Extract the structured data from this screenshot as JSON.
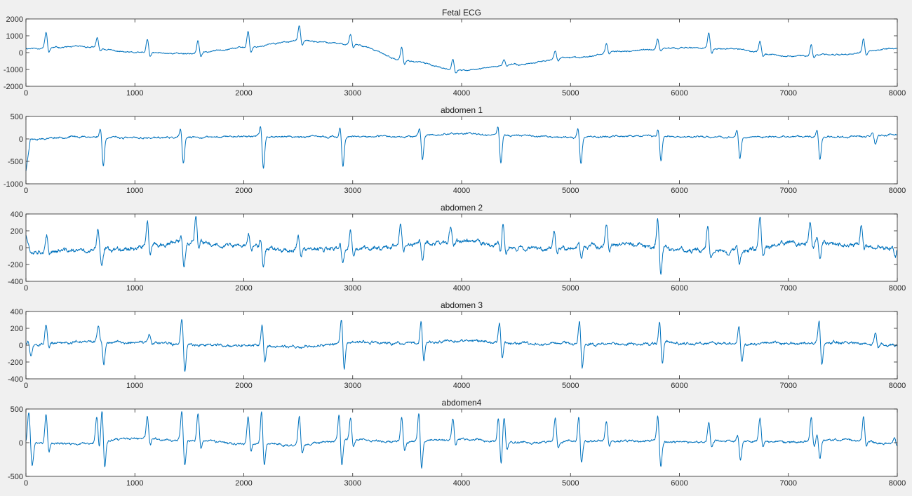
{
  "chart_data": [
    {
      "type": "line",
      "title": "Fetal ECG",
      "xlabel": "",
      "ylabel": "",
      "xlim": [
        0,
        8000
      ],
      "ylim": [
        -2000,
        2000
      ],
      "xticks": [
        "0",
        "1000",
        "2000",
        "3000",
        "4000",
        "5000",
        "6000",
        "7000",
        "8000"
      ],
      "yticks": [
        "2000",
        "1000",
        "0",
        "-1000",
        "-2000"
      ],
      "color": "#0072bd",
      "series": [
        {
          "baseline": {
            "x": [
              0,
              500,
              1000,
              1500,
              2000,
              2500,
              3000,
              3500,
              4000,
              4500,
              5000,
              5500,
              6000,
              6500,
              7000,
              7500,
              8000
            ],
            "y": [
              250,
              350,
              0,
              -50,
              300,
              700,
              500,
              -500,
              -1050,
              -700,
              -300,
              100,
              300,
              200,
              -200,
              -100,
              250
            ]
          },
          "peaks": [
            {
              "x": 185,
              "y": 1200
            },
            {
              "x": 655,
              "y": 900
            },
            {
              "x": 1115,
              "y": 800
            },
            {
              "x": 1580,
              "y": 700
            },
            {
              "x": 2040,
              "y": 1300
            },
            {
              "x": 2510,
              "y": 1600
            },
            {
              "x": 2980,
              "y": 1100
            },
            {
              "x": 3450,
              "y": 300
            },
            {
              "x": 3920,
              "y": -400
            },
            {
              "x": 4390,
              "y": -400
            },
            {
              "x": 4860,
              "y": 100
            },
            {
              "x": 5330,
              "y": 500
            },
            {
              "x": 5800,
              "y": 800
            },
            {
              "x": 6270,
              "y": 1200
            },
            {
              "x": 6740,
              "y": 700
            },
            {
              "x": 7210,
              "y": 500
            },
            {
              "x": 7690,
              "y": 800
            }
          ],
          "noise": 45,
          "seed": 11
        }
      ]
    },
    {
      "type": "line",
      "title": "abdomen 1",
      "xlabel": "",
      "ylabel": "",
      "xlim": [
        0,
        8000
      ],
      "ylim": [
        -1000,
        500
      ],
      "xticks": [
        "0",
        "1000",
        "2000",
        "3000",
        "4000",
        "5000",
        "6000",
        "7000",
        "8000"
      ],
      "yticks": [
        "500",
        "0",
        "-500",
        "-1000"
      ],
      "color": "#0072bd",
      "series": [
        {
          "baseline": {
            "x": [
              0,
              500,
              1000,
              1500,
              2000,
              2500,
              3000,
              3500,
              4000,
              4500,
              5000,
              5500,
              6000,
              6500,
              7000,
              7500,
              8000
            ],
            "y": [
              0,
              50,
              20,
              30,
              60,
              50,
              40,
              60,
              120,
              80,
              40,
              60,
              50,
              40,
              50,
              40,
              100
            ]
          },
          "troughs": [
            {
              "x": 710,
              "y": -600
            },
            {
              "x": 1445,
              "y": -580
            },
            {
              "x": 2180,
              "y": -670
            },
            {
              "x": 2910,
              "y": -620
            },
            {
              "x": 3640,
              "y": -470
            },
            {
              "x": 4360,
              "y": -550
            },
            {
              "x": 5095,
              "y": -550
            },
            {
              "x": 5830,
              "y": -500
            },
            {
              "x": 6555,
              "y": -460
            },
            {
              "x": 7290,
              "y": -470
            },
            {
              "x": 7800,
              "y": -130
            }
          ],
          "start": -720,
          "noise": 22,
          "seed": 23
        }
      ]
    },
    {
      "type": "line",
      "title": "abdomen 2",
      "xlabel": "",
      "ylabel": "",
      "xlim": [
        0,
        8000
      ],
      "ylim": [
        -400,
        400
      ],
      "xticks": [
        "0",
        "1000",
        "2000",
        "3000",
        "4000",
        "5000",
        "6000",
        "7000",
        "8000"
      ],
      "yticks": [
        "400",
        "200",
        "0",
        "-200",
        "-400"
      ],
      "color": "#0072bd",
      "series": [
        {
          "baseline": {
            "x": [
              0,
              500,
              1000,
              1500,
              2000,
              2500,
              3000,
              3500,
              4000,
              4500,
              5000,
              5500,
              6000,
              6500,
              7000,
              7500,
              8000
            ],
            "y": [
              -30,
              -40,
              0,
              60,
              20,
              -30,
              -20,
              30,
              80,
              0,
              0,
              40,
              -20,
              -40,
              50,
              40,
              -10
            ]
          },
          "peaks": [
            {
              "x": 190,
              "y": 120
            },
            {
              "x": 660,
              "y": 200
            },
            {
              "x": 1115,
              "y": 330
            },
            {
              "x": 1560,
              "y": 370
            },
            {
              "x": 2045,
              "y": 160
            },
            {
              "x": 2500,
              "y": 150
            },
            {
              "x": 2980,
              "y": 200
            },
            {
              "x": 3440,
              "y": 290
            },
            {
              "x": 3900,
              "y": 230
            },
            {
              "x": 4380,
              "y": 310
            },
            {
              "x": 4850,
              "y": 200
            },
            {
              "x": 5330,
              "y": 300
            },
            {
              "x": 5800,
              "y": 280
            },
            {
              "x": 6260,
              "y": 250
            },
            {
              "x": 6740,
              "y": 370
            },
            {
              "x": 7200,
              "y": 290
            },
            {
              "x": 7670,
              "y": 250
            }
          ],
          "troughs": [
            {
              "x": 700,
              "y": -200
            },
            {
              "x": 1450,
              "y": -220
            },
            {
              "x": 2180,
              "y": -230
            },
            {
              "x": 2910,
              "y": -180
            },
            {
              "x": 3640,
              "y": -130
            },
            {
              "x": 4360,
              "y": -110
            },
            {
              "x": 5100,
              "y": -150
            },
            {
              "x": 5830,
              "y": -220
            },
            {
              "x": 6550,
              "y": -200
            },
            {
              "x": 7290,
              "y": -160
            },
            {
              "x": 7980,
              "y": -130
            }
          ],
          "start": 150,
          "noise": 30,
          "seed": 37
        }
      ]
    },
    {
      "type": "line",
      "title": "abdomen 3",
      "xlabel": "",
      "ylabel": "",
      "xlim": [
        0,
        8000
      ],
      "ylim": [
        -400,
        400
      ],
      "xticks": [
        "0",
        "1000",
        "2000",
        "3000",
        "4000",
        "5000",
        "6000",
        "7000",
        "8000"
      ],
      "yticks": [
        "400",
        "200",
        "0",
        "-200",
        "-400"
      ],
      "color": "#0072bd",
      "series": [
        {
          "baseline": {
            "x": [
              0,
              500,
              1000,
              1500,
              2000,
              2500,
              3000,
              3500,
              4000,
              4500,
              5000,
              5500,
              6000,
              6500,
              7000,
              7500,
              8000
            ],
            "y": [
              0,
              40,
              30,
              10,
              0,
              -20,
              30,
              20,
              50,
              20,
              20,
              10,
              20,
              20,
              20,
              30,
              0
            ]
          },
          "peaks": [
            {
              "x": 185,
              "y": 240
            },
            {
              "x": 665,
              "y": 230
            },
            {
              "x": 1135,
              "y": 120
            },
            {
              "x": 1430,
              "y": 230
            },
            {
              "x": 2170,
              "y": 220
            },
            {
              "x": 2900,
              "y": 230
            },
            {
              "x": 3630,
              "y": 240
            },
            {
              "x": 4350,
              "y": 220
            },
            {
              "x": 5085,
              "y": 220
            },
            {
              "x": 5820,
              "y": 230
            },
            {
              "x": 6550,
              "y": 200
            },
            {
              "x": 7285,
              "y": 240
            },
            {
              "x": 7800,
              "y": 140
            }
          ],
          "troughs": [
            {
              "x": 45,
              "y": -150
            },
            {
              "x": 715,
              "y": -220
            },
            {
              "x": 1460,
              "y": -260
            },
            {
              "x": 2190,
              "y": -150
            },
            {
              "x": 2920,
              "y": -250
            },
            {
              "x": 3650,
              "y": -150
            },
            {
              "x": 4370,
              "y": -130
            },
            {
              "x": 5105,
              "y": -240
            },
            {
              "x": 5840,
              "y": -180
            },
            {
              "x": 6570,
              "y": -150
            },
            {
              "x": 7305,
              "y": -200
            }
          ],
          "noise": 18,
          "seed": 51
        }
      ]
    },
    {
      "type": "line",
      "title": "abdomen4",
      "xlabel": "",
      "ylabel": "",
      "xlim": [
        0,
        8000
      ],
      "ylim": [
        -500,
        500
      ],
      "xticks": [
        "0",
        "1000",
        "2000",
        "3000",
        "4000",
        "5000",
        "6000",
        "7000",
        "8000"
      ],
      "yticks": [
        "500",
        "0",
        "-500"
      ],
      "color": "#0072bd",
      "series": [
        {
          "baseline": {
            "x": [
              0,
              500,
              1000,
              1500,
              2000,
              2500,
              3000,
              3500,
              4000,
              4500,
              5000,
              5500,
              6000,
              6500,
              7000,
              7500,
              8000
            ],
            "y": [
              0,
              -20,
              60,
              30,
              -10,
              -30,
              40,
              10,
              50,
              0,
              20,
              30,
              10,
              30,
              10,
              40,
              -20
            ]
          },
          "peaks": [
            {
              "x": 25,
              "y": 400
            },
            {
              "x": 185,
              "y": 420
            },
            {
              "x": 650,
              "y": 380
            },
            {
              "x": 700,
              "y": 440
            },
            {
              "x": 1115,
              "y": 380
            },
            {
              "x": 1430,
              "y": 400
            },
            {
              "x": 1580,
              "y": 420
            },
            {
              "x": 2040,
              "y": 380
            },
            {
              "x": 2165,
              "y": 430
            },
            {
              "x": 2510,
              "y": 400
            },
            {
              "x": 2880,
              "y": 400
            },
            {
              "x": 2980,
              "y": 360
            },
            {
              "x": 3450,
              "y": 380
            },
            {
              "x": 3610,
              "y": 380
            },
            {
              "x": 3920,
              "y": 350
            },
            {
              "x": 4340,
              "y": 320
            },
            {
              "x": 4390,
              "y": 380
            },
            {
              "x": 4860,
              "y": 380
            },
            {
              "x": 5080,
              "y": 400
            },
            {
              "x": 5330,
              "y": 320
            },
            {
              "x": 5800,
              "y": 320
            },
            {
              "x": 6270,
              "y": 330
            },
            {
              "x": 6740,
              "y": 360
            },
            {
              "x": 7210,
              "y": 360
            },
            {
              "x": 7690,
              "y": 380
            },
            {
              "x": 7975,
              "y": 80
            }
          ],
          "troughs": [
            {
              "x": 60,
              "y": -260
            },
            {
              "x": 720,
              "y": -260
            },
            {
              "x": 1460,
              "y": -230
            },
            {
              "x": 2185,
              "y": -230
            },
            {
              "x": 2895,
              "y": -330
            },
            {
              "x": 3630,
              "y": -310
            },
            {
              "x": 4360,
              "y": -260
            },
            {
              "x": 5095,
              "y": -260
            },
            {
              "x": 5830,
              "y": -260
            },
            {
              "x": 6560,
              "y": -260
            },
            {
              "x": 7290,
              "y": -250
            }
          ],
          "noise": 18,
          "seed": 71
        }
      ]
    }
  ]
}
